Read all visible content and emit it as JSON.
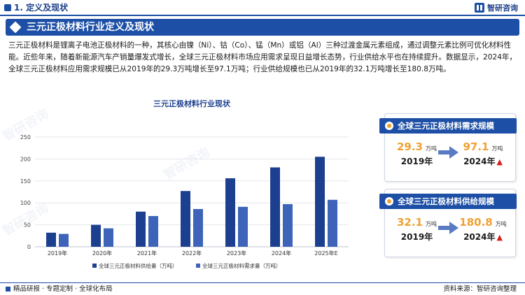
{
  "header": {
    "section_label": "1. 定义及现状",
    "brand_label": "智研咨询"
  },
  "title_bar": {
    "title": "三元正极材料行业定义及现状"
  },
  "intro": {
    "text": "三元正极材料是锂离子电池正极材料的一种，其核心由镍（Ni）、钴（Co）、锰（Mn）或铝（Al）三种过渡金属元素组成，通过调整元素比例可优化材料性能。近些年来，随着新能源汽车产销量爆发式增长，全球三元正极材料市场应用需求呈现日益增长态势，行业供给水平也在持续提升。数据显示，2024年，全球三元正极材料应用需求规模已从2019年的29.3万吨增长至97.1万吨；行业供给规模也已从2019年的32.1万吨增长至180.8万吨。"
  },
  "chart_data": {
    "type": "bar",
    "title": "三元正极材料行业现状",
    "categories": [
      "2019年",
      "2020年",
      "2021年",
      "2022年",
      "2023年",
      "2024年",
      "2025年E"
    ],
    "series": [
      {
        "name": "全球三元正极材料供给量（万吨）",
        "values": [
          32.1,
          50,
          80,
          127,
          156,
          180.8,
          205
        ],
        "color": "#1d3f8f"
      },
      {
        "name": "全球三元正极材料需求量（万吨）",
        "values": [
          29.3,
          42,
          70,
          86,
          91,
          97.1,
          107
        ],
        "color": "#3d64b8"
      }
    ],
    "yticks": [
      0,
      50,
      100,
      150,
      200,
      250
    ],
    "ylim": [
      0,
      250
    ],
    "grid": true,
    "legend_position": "bottom"
  },
  "demand_card": {
    "title": "全球三元正极材料需求规模",
    "from_value": "29.3",
    "from_unit": "万吨",
    "from_year": "2019年",
    "to_value": "97.1",
    "to_unit": "万吨",
    "to_year": "2024年",
    "trend_icon": "up-arrow-icon"
  },
  "supply_card": {
    "title": "全球三元正极材料供给规模",
    "from_value": "32.1",
    "from_unit": "万吨",
    "from_year": "2019年",
    "to_value": "180.8",
    "to_unit": "万吨",
    "to_year": "2024年",
    "trend_icon": "up-arrow-icon"
  },
  "footer": {
    "left_text": "精品研报 · 专题定制 · 全球化布局",
    "right_text": "资料来源：智研咨询整理"
  },
  "watermark_text": "智研咨询"
}
